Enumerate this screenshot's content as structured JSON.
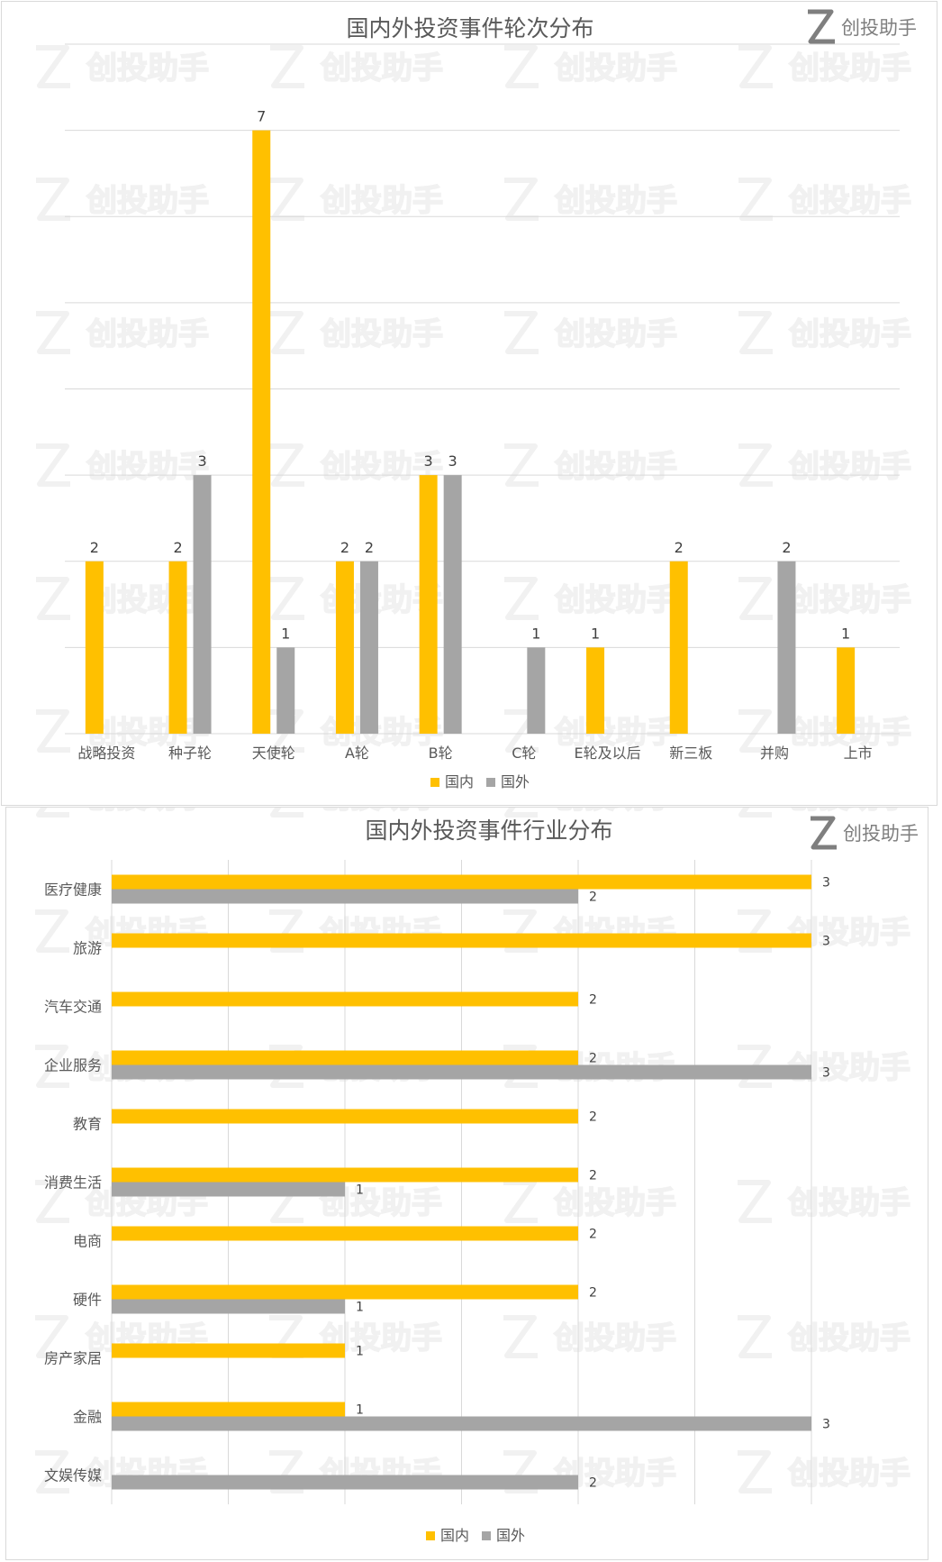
{
  "brand": {
    "name": "创投助手"
  },
  "colors": {
    "domestic": "#FFC000",
    "foreign": "#A5A5A5",
    "grid": "#D9D9D9"
  },
  "chart_data": [
    {
      "type": "bar",
      "orientation": "vertical",
      "title": "国内外投资事件轮次分布",
      "categories": [
        "战略投资",
        "种子轮",
        "天使轮",
        "A轮",
        "B轮",
        "C轮",
        "E轮及以后",
        "新三板",
        "并购",
        "上市"
      ],
      "series": [
        {
          "name": "国内",
          "values": [
            2,
            2,
            7,
            2,
            3,
            null,
            1,
            2,
            null,
            1
          ]
        },
        {
          "name": "国外",
          "values": [
            null,
            3,
            1,
            2,
            3,
            1,
            null,
            null,
            2,
            null
          ]
        }
      ],
      "ylim": [
        0,
        8
      ],
      "grid": true,
      "legend": "bottom"
    },
    {
      "type": "bar",
      "orientation": "horizontal",
      "title": "国内外投资事件行业分布",
      "categories": [
        "医疗健康",
        "旅游",
        "汽车交通",
        "企业服务",
        "教育",
        "消费生活",
        "电商",
        "硬件",
        "房产家居",
        "金融",
        "文娱传媒"
      ],
      "series": [
        {
          "name": "国内",
          "values": [
            3,
            3,
            2,
            2,
            2,
            2,
            2,
            2,
            1,
            1,
            null
          ]
        },
        {
          "name": "国外",
          "values": [
            2,
            null,
            null,
            3,
            null,
            1,
            null,
            1,
            null,
            3,
            2
          ]
        }
      ],
      "xlim": [
        0,
        3.5
      ],
      "grid": true,
      "legend": "bottom"
    }
  ]
}
